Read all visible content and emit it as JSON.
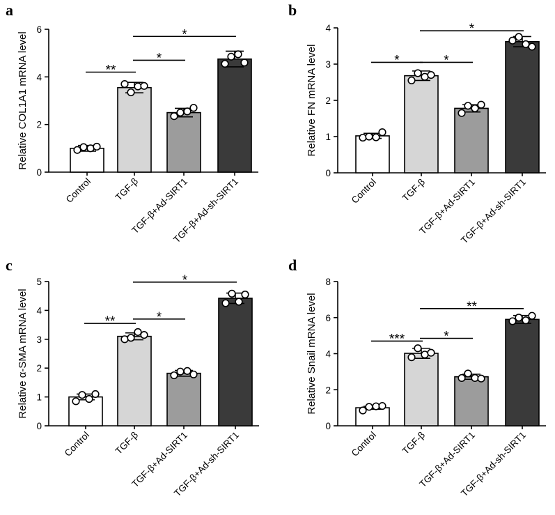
{
  "chart_data": [
    {
      "panel": "a",
      "type": "bar",
      "categories": [
        "Control",
        "TGF-β",
        "TGF-β+Ad-SIRT1",
        "TGF-β+Ad-sh-SIRT1"
      ],
      "values": [
        1.0,
        3.55,
        2.5,
        4.75
      ],
      "errors": [
        0.12,
        0.22,
        0.18,
        0.33
      ],
      "points": [
        [
          0.93,
          1.05,
          1.0,
          1.07
        ],
        [
          3.7,
          3.35,
          3.6,
          3.62
        ],
        [
          2.35,
          2.5,
          2.55,
          2.7
        ],
        [
          4.55,
          4.85,
          4.95,
          4.6
        ]
      ],
      "colors": [
        "#ffffff",
        "#d6d6d6",
        "#9c9c9c",
        "#3a3a3a"
      ],
      "ylabel": "Relative COL1A1 mRNA level",
      "ylim": [
        0,
        6
      ],
      "yticks": [
        0,
        2,
        4,
        6
      ],
      "significance": [
        {
          "from": 0,
          "to": 1,
          "level": 4.2,
          "label": "**"
        },
        {
          "from": 1,
          "to": 2,
          "level": 4.7,
          "label": "*"
        },
        {
          "from": 1,
          "to": 3,
          "level": 5.7,
          "label": "*"
        }
      ]
    },
    {
      "panel": "b",
      "type": "bar",
      "categories": [
        "Control",
        "TGF-β",
        "TGF-β+Ad-SIRT1",
        "TGF-β+Ad-sh-SIRT1"
      ],
      "values": [
        1.02,
        2.68,
        1.78,
        3.62
      ],
      "errors": [
        0.07,
        0.13,
        0.1,
        0.14
      ],
      "points": [
        [
          0.97,
          1.0,
          0.98,
          1.12
        ],
        [
          2.55,
          2.75,
          2.65,
          2.7
        ],
        [
          1.65,
          1.85,
          1.78,
          1.88
        ],
        [
          3.65,
          3.75,
          3.55,
          3.48
        ]
      ],
      "colors": [
        "#ffffff",
        "#d6d6d6",
        "#9c9c9c",
        "#3a3a3a"
      ],
      "ylabel": "Relative FN mRNA level",
      "ylim": [
        0,
        4
      ],
      "yticks": [
        0,
        1,
        2,
        3,
        4
      ],
      "significance": [
        {
          "from": 0,
          "to": 1,
          "level": 3.05,
          "label": "*"
        },
        {
          "from": 1,
          "to": 2,
          "level": 3.05,
          "label": "*"
        },
        {
          "from": 1,
          "to": 3,
          "level": 3.92,
          "label": "*"
        }
      ]
    },
    {
      "panel": "c",
      "type": "bar",
      "categories": [
        "Control",
        "TGF-β",
        "TGF-β+Ad-SIRT1",
        "TGF-β+Ad-sh-SIRT1"
      ],
      "values": [
        1.0,
        3.1,
        1.82,
        4.42
      ],
      "errors": [
        0.1,
        0.12,
        0.1,
        0.18
      ],
      "points": [
        [
          0.85,
          1.07,
          0.93,
          1.1
        ],
        [
          3.0,
          3.05,
          3.25,
          3.15
        ],
        [
          1.75,
          1.88,
          1.9,
          1.78
        ],
        [
          4.25,
          4.58,
          4.3,
          4.55
        ]
      ],
      "colors": [
        "#ffffff",
        "#d6d6d6",
        "#9c9c9c",
        "#3a3a3a"
      ],
      "ylabel": "Relative α-SMA mRNA level",
      "ylim": [
        0,
        5
      ],
      "yticks": [
        0,
        1,
        2,
        3,
        4,
        5
      ],
      "significance": [
        {
          "from": 0,
          "to": 1,
          "level": 3.55,
          "label": "**"
        },
        {
          "from": 1,
          "to": 2,
          "level": 3.7,
          "label": "*"
        },
        {
          "from": 1,
          "to": 3,
          "level": 4.98,
          "label": "*"
        }
      ]
    },
    {
      "panel": "d",
      "type": "bar",
      "categories": [
        "Control",
        "TGF-β",
        "TGF-β+Ad-SIRT1",
        "TGF-β+Ad-sh-SIRT1"
      ],
      "values": [
        1.0,
        4.02,
        2.72,
        5.9
      ],
      "errors": [
        0.08,
        0.28,
        0.14,
        0.22
      ],
      "points": [
        [
          0.85,
          1.05,
          1.08,
          1.1
        ],
        [
          3.8,
          4.3,
          3.95,
          4.05
        ],
        [
          2.65,
          2.9,
          2.65,
          2.62
        ],
        [
          5.8,
          6.0,
          5.85,
          6.1
        ]
      ],
      "colors": [
        "#ffffff",
        "#d6d6d6",
        "#9c9c9c",
        "#3a3a3a"
      ],
      "ylabel": "Relative Snail mRNA level",
      "ylim": [
        0,
        8
      ],
      "yticks": [
        0,
        2,
        4,
        6,
        8
      ],
      "significance": [
        {
          "from": 0,
          "to": 1,
          "level": 4.7,
          "label": "***"
        },
        {
          "from": 1,
          "to": 2,
          "level": 4.85,
          "label": "*"
        },
        {
          "from": 1,
          "to": 3,
          "level": 6.5,
          "label": "**"
        }
      ]
    }
  ]
}
